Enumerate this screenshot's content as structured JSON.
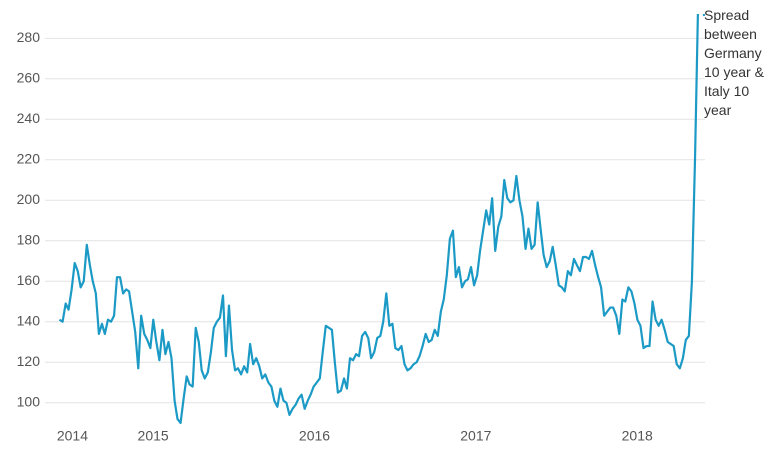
{
  "chart_data": {
    "type": "line",
    "x": [
      2014.42,
      2014.439,
      2014.458,
      2014.476,
      2014.495,
      2014.514,
      2014.533,
      2014.551,
      2014.57,
      2014.589,
      2014.608,
      2014.626,
      2014.645,
      2014.664,
      2014.683,
      2014.701,
      2014.72,
      2014.739,
      2014.758,
      2014.776,
      2014.795,
      2014.814,
      2014.833,
      2014.851,
      2014.87,
      2014.889,
      2014.908,
      2014.926,
      2014.945,
      2014.964,
      2014.983,
      2015.001,
      2015.02,
      2015.039,
      2015.058,
      2015.076,
      2015.095,
      2015.114,
      2015.133,
      2015.151,
      2015.17,
      2015.189,
      2015.208,
      2015.226,
      2015.245,
      2015.264,
      2015.283,
      2015.301,
      2015.32,
      2015.339,
      2015.358,
      2015.376,
      2015.395,
      2015.414,
      2015.433,
      2015.451,
      2015.47,
      2015.489,
      2015.508,
      2015.526,
      2015.545,
      2015.564,
      2015.583,
      2015.601,
      2015.62,
      2015.639,
      2015.658,
      2015.676,
      2015.695,
      2015.714,
      2015.733,
      2015.751,
      2015.77,
      2015.789,
      2015.808,
      2015.826,
      2015.845,
      2015.864,
      2015.883,
      2015.901,
      2015.92,
      2015.939,
      2015.958,
      2015.976,
      2015.995,
      2016.014,
      2016.033,
      2016.051,
      2016.07,
      2016.089,
      2016.108,
      2016.126,
      2016.145,
      2016.164,
      2016.183,
      2016.201,
      2016.22,
      2016.239,
      2016.258,
      2016.276,
      2016.295,
      2016.314,
      2016.333,
      2016.351,
      2016.37,
      2016.389,
      2016.408,
      2016.426,
      2016.445,
      2016.464,
      2016.483,
      2016.501,
      2016.52,
      2016.539,
      2016.558,
      2016.576,
      2016.595,
      2016.614,
      2016.633,
      2016.651,
      2016.67,
      2016.689,
      2016.708,
      2016.726,
      2016.745,
      2016.764,
      2016.783,
      2016.801,
      2016.82,
      2016.839,
      2016.858,
      2016.876,
      2016.895,
      2016.914,
      2016.933,
      2016.951,
      2016.97,
      2016.989,
      2017.008,
      2017.026,
      2017.045,
      2017.064,
      2017.083,
      2017.101,
      2017.12,
      2017.139,
      2017.158,
      2017.176,
      2017.195,
      2017.214,
      2017.233,
      2017.251,
      2017.27,
      2017.289,
      2017.308,
      2017.326,
      2017.345,
      2017.364,
      2017.383,
      2017.401,
      2017.42,
      2017.439,
      2017.458,
      2017.476,
      2017.495,
      2017.514,
      2017.533,
      2017.551,
      2017.57,
      2017.589,
      2017.608,
      2017.626,
      2017.645,
      2017.664,
      2017.683,
      2017.701,
      2017.72,
      2017.739,
      2017.758,
      2017.776,
      2017.795,
      2017.814,
      2017.833,
      2017.851,
      2017.87,
      2017.889,
      2017.908,
      2017.926,
      2017.945,
      2017.964,
      2017.983,
      2018.001,
      2018.02,
      2018.039,
      2018.058,
      2018.076,
      2018.095,
      2018.114,
      2018.133,
      2018.151,
      2018.17,
      2018.189,
      2018.208,
      2018.226,
      2018.245,
      2018.264,
      2018.283,
      2018.301,
      2018.32,
      2018.339,
      2018.358,
      2018.376
    ],
    "series": [
      {
        "name": "Spread between Germany 10 year & Italy 10 year",
        "color": "#1c9ac6",
        "values": [
          141,
          140,
          149,
          146,
          156,
          169,
          165,
          157,
          160,
          178,
          168,
          160,
          154,
          134,
          139,
          134,
          141,
          140,
          143,
          162,
          162,
          154,
          156,
          155,
          145,
          135,
          117,
          143,
          134,
          131,
          127,
          141,
          130,
          121,
          136,
          124,
          130,
          122,
          101,
          92,
          90,
          102,
          113,
          109,
          108,
          137,
          130,
          116,
          112,
          115,
          125,
          137,
          140,
          142,
          153,
          123,
          148,
          126,
          116,
          117,
          114,
          118,
          115,
          129,
          119,
          122,
          118,
          112,
          114,
          110,
          108,
          101,
          98,
          107,
          101,
          100,
          94,
          97,
          99,
          102,
          104,
          97,
          101,
          104,
          108,
          110,
          112,
          125,
          138,
          137,
          136,
          120,
          105,
          106,
          112,
          107,
          122,
          121,
          124,
          123,
          133,
          135,
          132,
          122,
          125,
          132,
          133,
          140,
          154,
          138,
          139,
          127,
          126,
          128,
          119,
          116,
          117,
          119,
          120,
          123,
          128,
          134,
          130,
          131,
          136,
          133,
          145,
          151,
          163,
          181,
          185,
          162,
          167,
          157,
          160,
          161,
          167,
          158,
          163,
          175,
          185,
          195,
          188,
          201,
          175,
          187,
          192,
          210,
          201,
          199,
          200,
          212,
          200,
          192,
          176,
          186,
          176,
          178,
          199,
          186,
          173,
          167,
          170,
          177,
          168,
          158,
          157,
          155,
          165,
          163,
          171,
          168,
          165,
          172,
          172,
          171,
          175,
          168,
          162,
          157,
          143,
          145,
          147,
          147,
          143,
          134,
          151,
          150,
          157,
          155,
          149,
          141,
          138,
          127,
          128,
          128,
          150,
          141,
          138,
          141,
          136,
          130,
          129,
          128,
          119,
          117,
          122,
          131,
          133,
          160,
          220,
          292
        ]
      }
    ],
    "xlim": [
      2014.33,
      2018.42
    ],
    "xticks": [
      {
        "value": 2014.5,
        "label": "2014"
      },
      2015,
      2016,
      2017,
      2018
    ],
    "ylim": [
      89,
      293
    ],
    "yticks": [
      100,
      120,
      140,
      160,
      180,
      200,
      220,
      240,
      260,
      280
    ],
    "grid": true
  }
}
